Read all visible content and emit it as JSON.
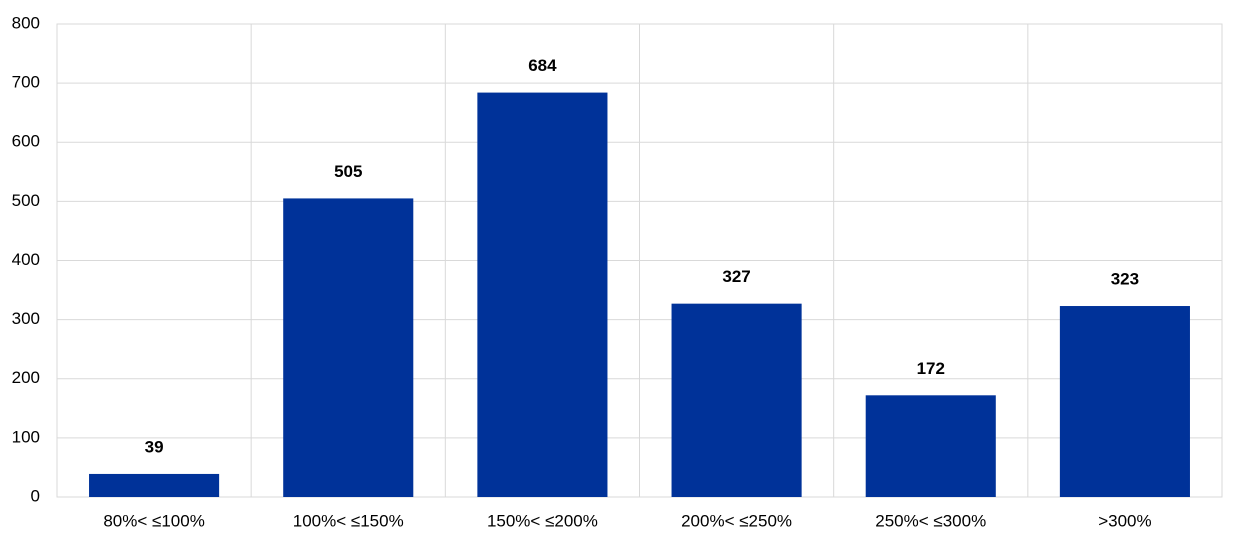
{
  "chart_data": {
    "type": "bar",
    "categories": [
      "80%< ≤100%",
      "100%< ≤150%",
      "150%< ≤200%",
      "200%< ≤250%",
      "250%< ≤300%",
      ">300%"
    ],
    "values": [
      39,
      505,
      684,
      327,
      172,
      323
    ],
    "color": "#003299",
    "ylim": [
      0,
      800
    ],
    "yticks": [
      0,
      100,
      200,
      300,
      400,
      500,
      600,
      700,
      800
    ],
    "grid": true
  }
}
